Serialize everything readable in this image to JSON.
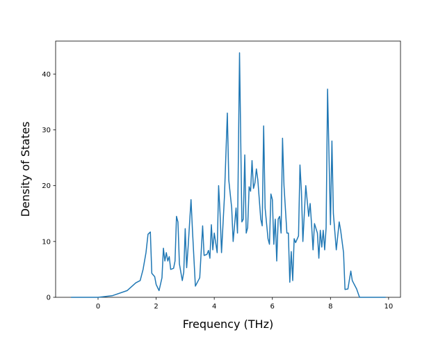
{
  "chart_data": {
    "type": "line",
    "x_label": "Frequency (THz)",
    "y_label": "Density of States",
    "xlim": [
      -1.46,
      10.41
    ],
    "ylim": [
      0,
      45.9
    ],
    "xticks": [
      0,
      2,
      4,
      6,
      8,
      10
    ],
    "yticks": [
      0,
      10,
      20,
      30,
      40
    ],
    "series": [
      {
        "color": "#1f77b4",
        "x": [
          -0.93,
          0,
          0.5,
          1.0,
          1.3,
          1.45,
          1.55,
          1.65,
          1.72,
          1.8,
          1.85,
          1.95,
          2.0,
          2.1,
          2.2,
          2.25,
          2.3,
          2.35,
          2.4,
          2.45,
          2.5,
          2.6,
          2.65,
          2.7,
          2.75,
          2.8,
          2.9,
          2.95,
          3.0,
          3.05,
          3.1,
          3.2,
          3.25,
          3.35,
          3.4,
          3.5,
          3.6,
          3.65,
          3.75,
          3.8,
          3.85,
          3.9,
          3.95,
          4.0,
          4.1,
          4.15,
          4.2,
          4.25,
          4.35,
          4.45,
          4.5,
          4.6,
          4.65,
          4.75,
          4.8,
          4.87,
          4.95,
          5.0,
          5.05,
          5.1,
          5.15,
          5.2,
          5.25,
          5.3,
          5.35,
          5.4,
          5.45,
          5.5,
          5.6,
          5.65,
          5.7,
          5.75,
          5.85,
          5.9,
          5.95,
          6.0,
          6.05,
          6.1,
          6.15,
          6.2,
          6.25,
          6.3,
          6.35,
          6.4,
          6.5,
          6.55,
          6.6,
          6.65,
          6.7,
          6.75,
          6.8,
          6.9,
          6.95,
          7.0,
          7.05,
          7.15,
          7.25,
          7.3,
          7.35,
          7.4,
          7.45,
          7.55,
          7.6,
          7.65,
          7.7,
          7.75,
          7.8,
          7.85,
          7.9,
          8.0,
          8.05,
          8.1,
          8.2,
          8.3,
          8.35,
          8.45,
          8.5,
          8.6,
          8.7,
          8.75,
          8.9,
          9.0,
          9.9
        ],
        "values": [
          0,
          0,
          0.3,
          1.2,
          2.6,
          3,
          5,
          8,
          11.3,
          11.7,
          4.3,
          3.7,
          2.3,
          1.2,
          3.5,
          8.8,
          6.5,
          8,
          6.5,
          7.3,
          5,
          5.2,
          6.5,
          14.5,
          13.5,
          6,
          3,
          4.5,
          12.3,
          5.3,
          9,
          17.5,
          12,
          2,
          2.5,
          3.5,
          12.8,
          7.5,
          7.7,
          8.4,
          7,
          13,
          8.5,
          11.5,
          8,
          20,
          15,
          8,
          18,
          33,
          21,
          16,
          10,
          16,
          11.5,
          43.8,
          13.5,
          14,
          25.5,
          11.5,
          12.5,
          19.8,
          19,
          24.5,
          19.5,
          20.5,
          23,
          21,
          14,
          12.8,
          30.7,
          16,
          10.5,
          9.5,
          18.5,
          17.5,
          9.5,
          14,
          6.5,
          14,
          14.5,
          11.5,
          28.5,
          20,
          11.5,
          11.5,
          2.7,
          8.2,
          3,
          10.5,
          9.8,
          11,
          23.7,
          19,
          10,
          20,
          14.5,
          16.8,
          13,
          8.5,
          13.2,
          11.5,
          7,
          12,
          9,
          12,
          8.5,
          12.5,
          37.3,
          13,
          28,
          15,
          8.5,
          13.5,
          12,
          8,
          1.4,
          1.5,
          4.7,
          3,
          1.5,
          0,
          0
        ]
      }
    ]
  }
}
